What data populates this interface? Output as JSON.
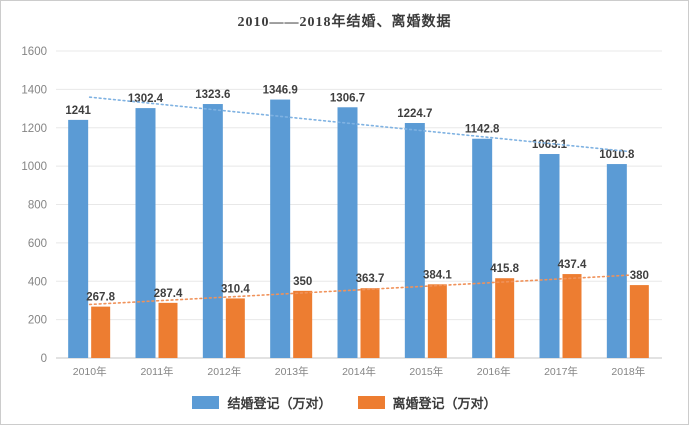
{
  "title": "2010——2018年结婚、离婚数据",
  "colors": {
    "marriage_bar": "#5B9BD5",
    "divorce_bar": "#ED7D31",
    "marriage_trend": "#7FB2E2",
    "divorce_trend": "#F0925A",
    "gridline": "#E8E8E8",
    "axis_line": "#C6C6C6",
    "axis_text": "#858585",
    "value_label_text": "#3F3F3F",
    "title_text": "#3B3B3B",
    "frame_border": "#CCCCCC"
  },
  "chart_data": {
    "type": "bar",
    "title": "2010——2018年结婚、离婚数据",
    "xlabel": "",
    "ylabel": "",
    "categories": [
      "2010年",
      "2011年",
      "2012年",
      "2013年",
      "2014年",
      "2015年",
      "2016年",
      "2017年",
      "2018年"
    ],
    "series": [
      {
        "key": "marriage",
        "name": "结婚登记（万对）",
        "color": "#5B9BD5",
        "trend_color": "#7FB2E2",
        "trendline": "linear-dotted",
        "values": [
          1241,
          1302.4,
          1323.6,
          1346.9,
          1306.7,
          1224.7,
          1142.8,
          1063.1,
          1010.8
        ],
        "labels": [
          "1241",
          "1302.4",
          "1323.6",
          "1346.9",
          "1306.7",
          "1224.7",
          "1142.8",
          "1063.1",
          "1010.8"
        ]
      },
      {
        "key": "divorce",
        "name": "离婚登记（万对）",
        "color": "#ED7D31",
        "trend_color": "#F0925A",
        "trendline": "linear-dotted",
        "values": [
          267.8,
          287.4,
          310.4,
          350,
          363.7,
          384.1,
          415.8,
          437.4,
          380
        ],
        "labels": [
          "267.8",
          "287.4",
          "310.4",
          "350",
          "363.7",
          "384.1",
          "415.8",
          "437.4",
          "380"
        ]
      }
    ],
    "ylim": [
      0,
      1600
    ],
    "yticks": [
      0,
      200,
      400,
      600,
      800,
      1000,
      1200,
      1400,
      1600
    ],
    "grid": true,
    "legend_position": "bottom"
  }
}
